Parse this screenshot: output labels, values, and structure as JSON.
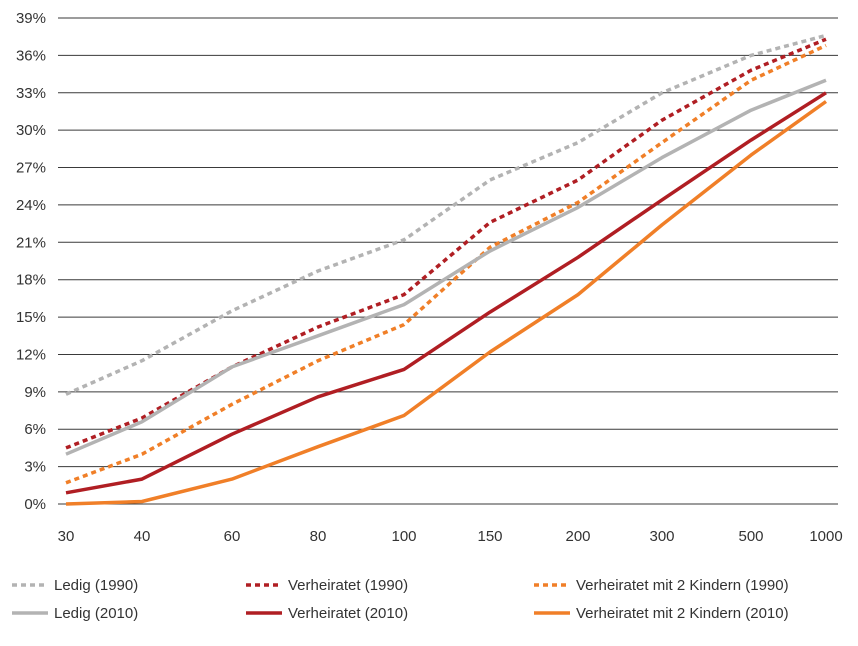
{
  "chart_data": {
    "type": "line",
    "title": "",
    "xlabel": "",
    "ylabel": "",
    "x": [
      "30",
      "40",
      "60",
      "80",
      "100",
      "150",
      "200",
      "300",
      "500",
      "1000"
    ],
    "y_ticks": [
      "0%",
      "3%",
      "6%",
      "9%",
      "12%",
      "15%",
      "18%",
      "21%",
      "24%",
      "27%",
      "30%",
      "33%",
      "36%",
      "39%"
    ],
    "ylim": [
      0,
      39
    ],
    "grid": true,
    "legend_position": "bottom",
    "series": [
      {
        "name": "Ledig (1990)",
        "values": [
          8.8,
          11.5,
          15.5,
          18.7,
          21.2,
          26.0,
          29.0,
          33.0,
          36.0,
          37.6
        ],
        "color": "#b3b3b3",
        "dashed": true
      },
      {
        "name": "Verheiratet (1990)",
        "values": [
          4.5,
          6.9,
          11.0,
          14.2,
          16.8,
          22.6,
          26.0,
          30.8,
          34.8,
          37.3
        ],
        "color": "#b01e23",
        "dashed": true
      },
      {
        "name": "Verheiratet mit 2 Kindern (1990)",
        "values": [
          1.7,
          4.0,
          8.0,
          11.5,
          14.4,
          20.6,
          24.2,
          29.0,
          34.0,
          36.8
        ],
        "color": "#f07f28",
        "dashed": true
      },
      {
        "name": "Ledig (2010)",
        "values": [
          4.0,
          6.6,
          11.0,
          13.5,
          16.0,
          20.3,
          23.8,
          27.8,
          31.6,
          34.0
        ],
        "color": "#b3b3b3",
        "dashed": false
      },
      {
        "name": "Verheiratet (2010)",
        "values": [
          0.9,
          2.0,
          5.6,
          8.6,
          10.8,
          15.4,
          19.8,
          24.4,
          29.2,
          33.0
        ],
        "color": "#b01e23",
        "dashed": false
      },
      {
        "name": "Verheiratet mit 2 Kindern (2010)",
        "values": [
          0.0,
          0.2,
          2.0,
          4.6,
          7.1,
          12.2,
          16.8,
          22.4,
          28.0,
          32.3
        ],
        "color": "#f07f28",
        "dashed": false
      }
    ]
  }
}
